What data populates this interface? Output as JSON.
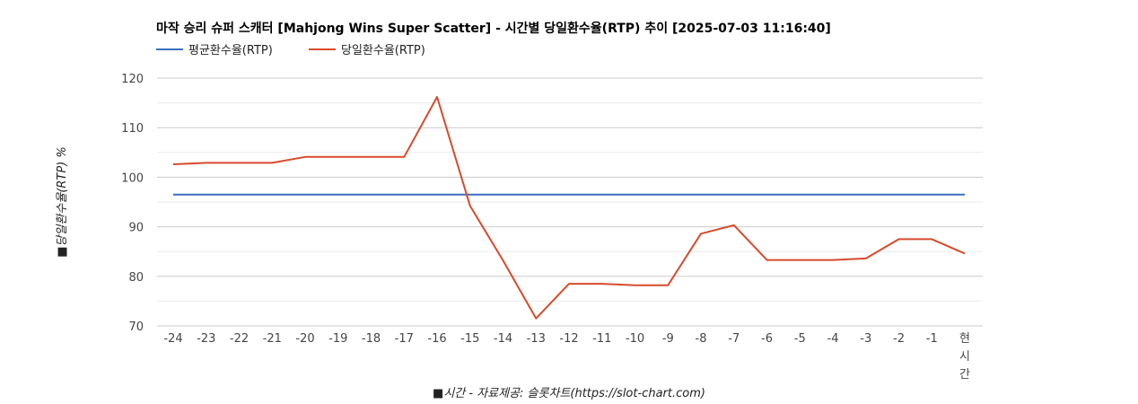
{
  "chart_data": {
    "type": "line",
    "title": "마작 승리 슈퍼 스캐터 [Mahjong Wins Super Scatter] - 시간별 당일환수율(RTP) 추이 [2025-07-03 11:16:40]",
    "xlabel": "■시간 - 자료제공: 슬롯차트(https://slot-chart.com)",
    "ylabel": "■당일환수율(RTP) %",
    "categories": [
      "-24",
      "-23",
      "-22",
      "-21",
      "-20",
      "-19",
      "-18",
      "-17",
      "-16",
      "-15",
      "-14",
      "-13",
      "-12",
      "-11",
      "-10",
      "-9",
      "-8",
      "-7",
      "-6",
      "-5",
      "-4",
      "-3",
      "-2",
      "-1",
      "현시간"
    ],
    "ylim": [
      70,
      120
    ],
    "yticks": [
      70,
      80,
      90,
      100,
      110,
      120
    ],
    "legend_position": "top-left",
    "grid": true,
    "series": [
      {
        "name": "평균환수율(RTP)",
        "color": "#3c6fc4",
        "values": [
          96.5,
          96.5,
          96.5,
          96.5,
          96.5,
          96.5,
          96.5,
          96.5,
          96.5,
          96.5,
          96.5,
          96.5,
          96.5,
          96.5,
          96.5,
          96.5,
          96.5,
          96.5,
          96.5,
          96.5,
          96.5,
          96.5,
          96.5,
          96.5,
          96.5
        ]
      },
      {
        "name": "당일환수율(RTP)",
        "color": "#d84a2b",
        "values": [
          102.6,
          102.9,
          102.9,
          102.9,
          104.1,
          104.1,
          104.1,
          104.1,
          116.2,
          94.2,
          83.2,
          71.5,
          78.5,
          78.5,
          78.2,
          78.2,
          88.6,
          90.3,
          83.3,
          83.3,
          83.3,
          83.6,
          87.5,
          87.5,
          84.6
        ]
      }
    ]
  }
}
